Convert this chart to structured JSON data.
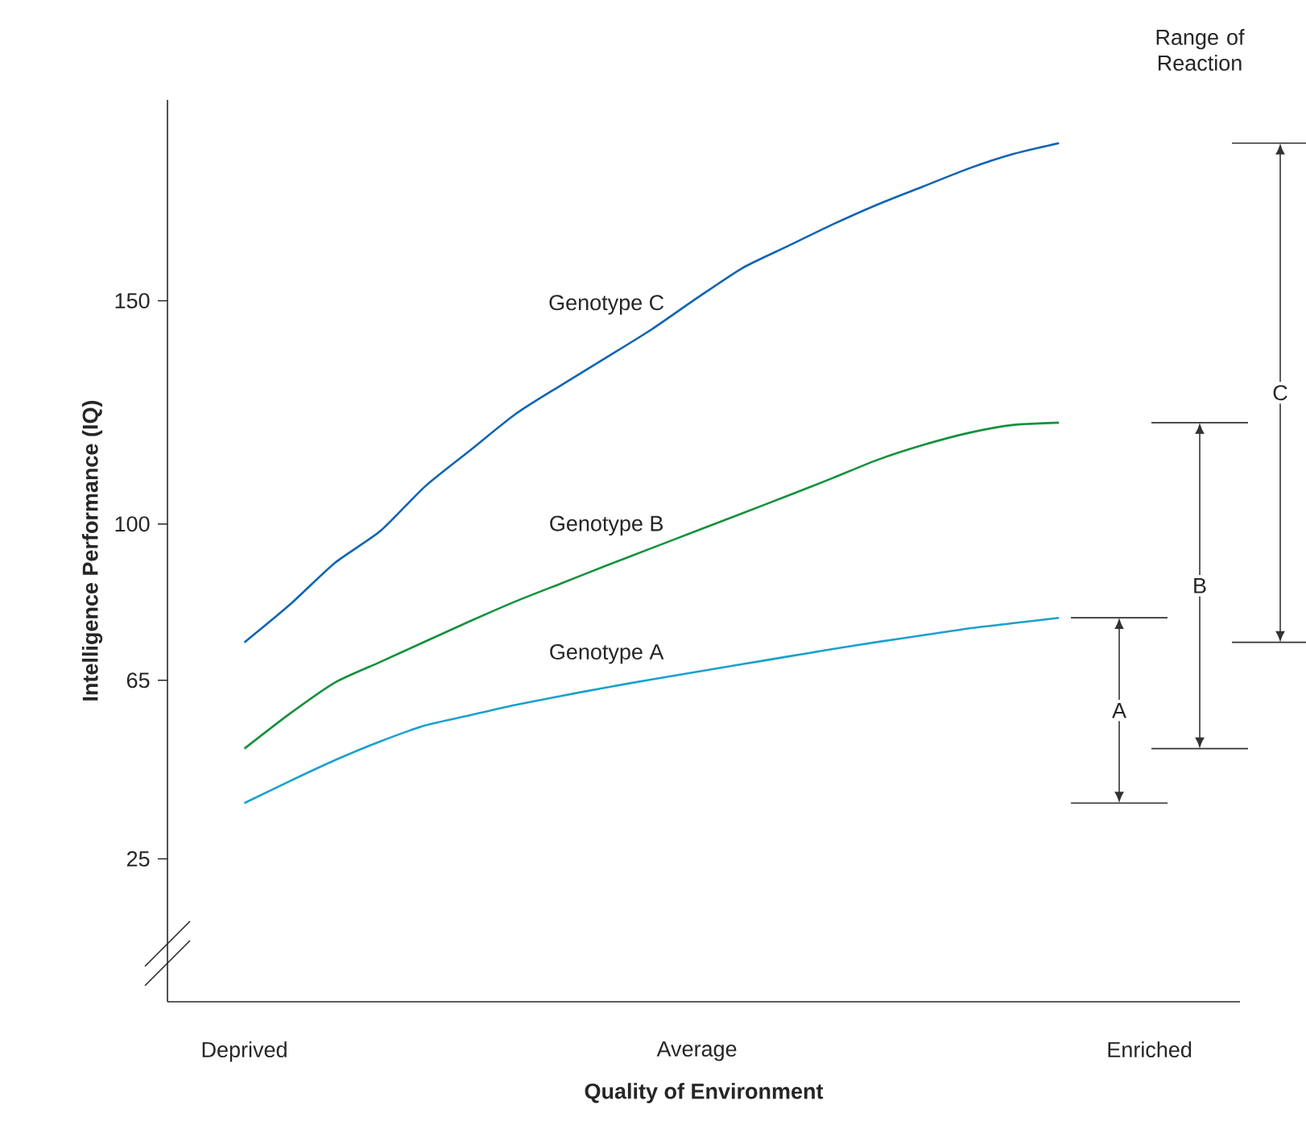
{
  "chart_data": {
    "type": "line",
    "xlabel": "Quality of Environment",
    "ylabel": "Intelligence Performance (IQ)",
    "categories": [
      "Deprived",
      null,
      null,
      null,
      null,
      null,
      null,
      null,
      null,
      null,
      "Average",
      null,
      null,
      null,
      null,
      null,
      null,
      null,
      null,
      null,
      "Enriched"
    ],
    "ylim": [
      -7,
      195
    ],
    "yticks": [
      25,
      65,
      100,
      150
    ],
    "series": [
      {
        "name": "Genotype A",
        "color": "#1aa0cc",
        "values": [
          37.5,
          42.4,
          47.1,
          51.3,
          54.9,
          57.2,
          59.5,
          61.5,
          63.4,
          65.2,
          66.9,
          68.6,
          70.3,
          72.0,
          73.6,
          75.1,
          76.6,
          77.8,
          79.0,
          null,
          null
        ]
      },
      {
        "name": "Genotype B",
        "color": "#14913c",
        "values": [
          49.7,
          57.5,
          64.5,
          69.1,
          73.7,
          78.3,
          82.7,
          86.7,
          90.7,
          94.6,
          98.5,
          102.4,
          106.3,
          110.3,
          114.4,
          117.7,
          120.4,
          122.2,
          122.7,
          null,
          null
        ]
      },
      {
        "name": "Genotype C",
        "color": "#0f64b4",
        "values": [
          73.5,
          81.9,
          91.3,
          98.4,
          108.5,
          116.6,
          124.7,
          131.1,
          137.3,
          143.6,
          150.6,
          157.3,
          162.2,
          167.1,
          171.6,
          175.6,
          179.6,
          182.9,
          185.3,
          null,
          null
        ]
      }
    ],
    "annotations": [
      "Range of Reaction",
      "A",
      "B",
      "C"
    ]
  }
}
